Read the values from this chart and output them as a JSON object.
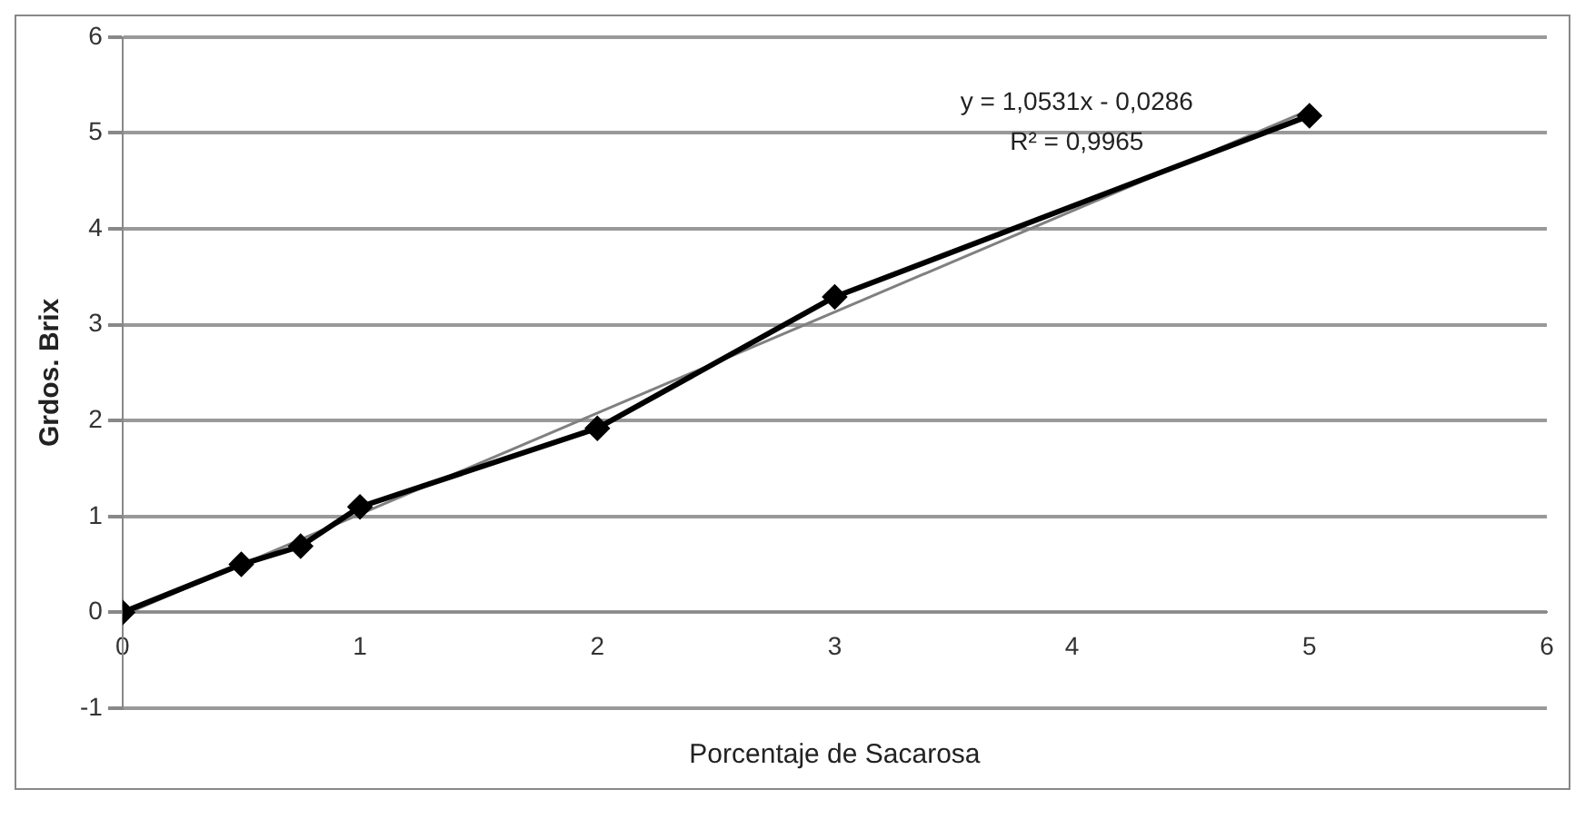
{
  "chart_data": {
    "type": "line",
    "xlabel": "Porcentaje de Sacarosa",
    "ylabel": "Grdos. Brix",
    "x": [
      0,
      0.5,
      0.75,
      1,
      2,
      3,
      5
    ],
    "series": [
      {
        "color": "#000000",
        "values": [
          0,
          0.5,
          0.69,
          1.1,
          1.92,
          3.29,
          5.18
        ],
        "marker": "diamond"
      },
      {
        "type": "line",
        "color": "#808080",
        "x": [
          0,
          5
        ],
        "values": [
          -0.03,
          5.24
        ],
        "marker": "none"
      }
    ],
    "annotations": [
      "y = 1,0531x - 0,0286",
      "R² = 0,9965"
    ],
    "xlim": [
      0,
      6
    ],
    "xticks": [
      0,
      1,
      2,
      3,
      4,
      5,
      6
    ],
    "ylim": [
      -1,
      6
    ],
    "yticks": [
      -1,
      0,
      1,
      2,
      3,
      4,
      5,
      6
    ],
    "grid": "y",
    "legend": false
  }
}
